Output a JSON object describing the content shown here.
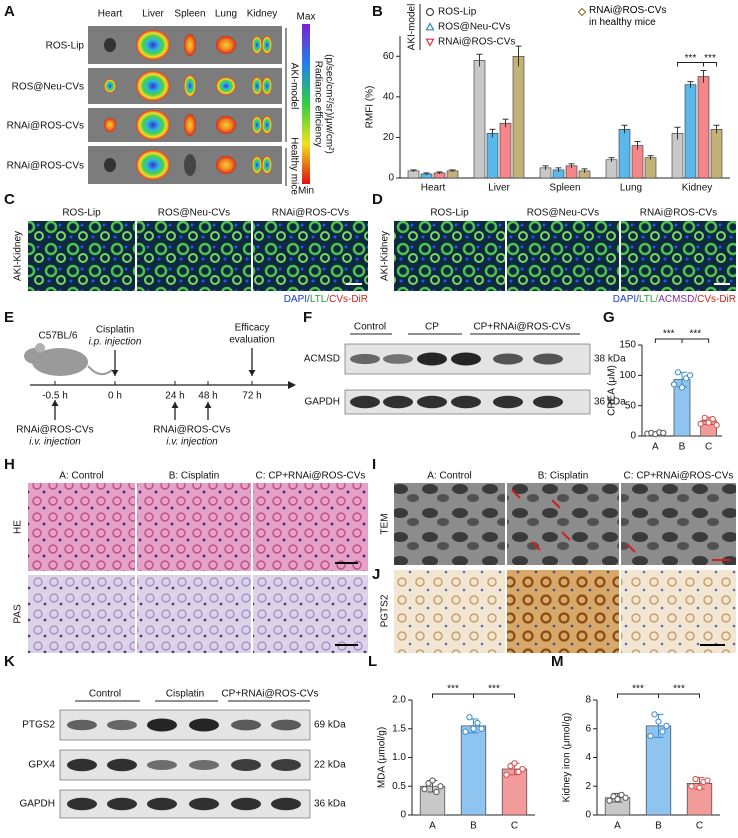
{
  "panel_letters": [
    "A",
    "B",
    "C",
    "D",
    "E",
    "F",
    "G",
    "H",
    "I",
    "J",
    "K",
    "L",
    "M"
  ],
  "panel_a": {
    "organs": [
      "Heart",
      "Liver",
      "Spleen",
      "Lung",
      "Kidney"
    ],
    "rows": [
      "ROS-Lip",
      "ROS@Neu-CVs",
      "RNAi@ROS-CVs",
      "RNAi@ROS-CVs"
    ],
    "groups": [
      "AKI-model",
      "Healthy mice"
    ],
    "colorbar": {
      "max": "Max",
      "min": "Min",
      "label": [
        "Radiance efficiency",
        "(p/sec/cm²/sr)/μw/cm²)"
      ]
    }
  },
  "chart_data": [
    {
      "type": "grouped_bar",
      "ylabel": "RMFI (%)",
      "legend_group": "AKI-model",
      "categories": [
        "Heart",
        "Liver",
        "Spleen",
        "Lung",
        "Kidney"
      ],
      "ylim": [
        0,
        70
      ],
      "yticks": [
        0,
        20,
        40,
        60
      ],
      "series": [
        {
          "name": "ROS-Lip",
          "color": "#c8c8c8",
          "edge": "#444444",
          "marker": "circle",
          "values": [
            3.5,
            58,
            5,
            9,
            22
          ],
          "errors": [
            0.5,
            3,
            1,
            1,
            3
          ]
        },
        {
          "name": "ROS@Neu-CVs",
          "color": "#5bb8ea",
          "edge": "#2a8ac0",
          "marker": "triangle-up",
          "values": [
            2,
            22,
            4,
            24,
            46
          ],
          "errors": [
            0.5,
            2,
            1,
            2,
            1.5
          ]
        },
        {
          "name": "RNAi@ROS-CVs",
          "color": "#f2868a",
          "edge": "#d9363e",
          "marker": "triangle-down",
          "values": [
            2.5,
            27,
            6,
            16,
            50
          ],
          "errors": [
            0.5,
            2,
            1,
            2,
            3
          ]
        },
        {
          "name": "RNAi@ROS-CVs in healthy mice",
          "color": "#c2b27a",
          "edge": "#8c7a3a",
          "marker": "diamond",
          "values": [
            3.5,
            60,
            3.5,
            10,
            24
          ],
          "errors": [
            0.5,
            5,
            1,
            1,
            2
          ]
        }
      ],
      "significance": [
        {
          "label": "***",
          "category": 4,
          "series": [
            0,
            2
          ]
        },
        {
          "label": "***",
          "category": 4,
          "series": [
            2,
            3
          ]
        }
      ]
    },
    {
      "type": "bar",
      "ylabel": "CREA (μM)",
      "categories": [
        "A",
        "B",
        "C"
      ],
      "values": [
        5,
        93,
        25
      ],
      "errors": [
        1,
        12,
        6
      ],
      "points": [
        [
          4,
          5,
          3,
          6,
          5
        ],
        [
          85,
          105,
          80,
          95,
          100
        ],
        [
          20,
          30,
          22,
          28,
          18
        ]
      ],
      "colors": [
        "#c8c8c8",
        "#8ec4f0",
        "#f29b9b"
      ],
      "edges": [
        "#555555",
        "#3a8ad0",
        "#d94a4a"
      ],
      "ylim": [
        0,
        150
      ],
      "yticks": [
        0,
        50,
        100,
        150
      ],
      "significance": [
        {
          "label": "***",
          "pair": [
            0,
            1
          ]
        },
        {
          "label": "***",
          "pair": [
            1,
            2
          ]
        }
      ]
    },
    {
      "type": "bar",
      "ylabel": "MDA (μmol/g)",
      "categories": [
        "A",
        "B",
        "C"
      ],
      "values": [
        0.5,
        1.55,
        0.8
      ],
      "errors": [
        0.1,
        0.12,
        0.1
      ],
      "points": [
        [
          0.45,
          0.55,
          0.6,
          0.4,
          0.5
        ],
        [
          1.45,
          1.7,
          1.5,
          1.6,
          1.5
        ],
        [
          0.7,
          0.85,
          0.9,
          0.75,
          0.8
        ]
      ],
      "colors": [
        "#c8c8c8",
        "#8ec4f0",
        "#f29b9b"
      ],
      "edges": [
        "#555555",
        "#3a8ad0",
        "#d94a4a"
      ],
      "ylim": [
        0,
        2
      ],
      "yticks": [
        0,
        0.5,
        {
          "value": 1,
          "label": "1.0"
        },
        1.5,
        {
          "value": 2,
          "label": "2.0"
        }
      ],
      "significance": [
        {
          "label": "***",
          "pair": [
            0,
            1
          ]
        },
        {
          "label": "***",
          "pair": [
            1,
            2
          ]
        }
      ]
    },
    {
      "type": "bar",
      "ylabel": "Kidney iron (μmol/g)",
      "categories": [
        "A",
        "B",
        "C"
      ],
      "values": [
        1.2,
        6.2,
        2.2
      ],
      "errors": [
        0.3,
        0.8,
        0.4
      ],
      "points": [
        [
          1,
          1.3,
          1.1,
          1.4,
          1.2
        ],
        [
          5.5,
          7,
          6.5,
          5.8,
          6.2
        ],
        [
          2,
          2.5,
          1.9,
          2.3,
          2.4
        ]
      ],
      "colors": [
        "#c8c8c8",
        "#8ec4f0",
        "#f29b9b"
      ],
      "edges": [
        "#555555",
        "#3a8ad0",
        "#d94a4a"
      ],
      "ylim": [
        0,
        8
      ],
      "yticks": [
        0,
        2,
        4,
        6,
        8
      ],
      "significance": [
        {
          "label": "***",
          "pair": [
            0,
            1
          ]
        },
        {
          "label": "***",
          "pair": [
            1,
            2
          ]
        }
      ]
    }
  ],
  "panel_c": {
    "titles": [
      "ROS-Lip",
      "ROS@Neu-CVs",
      "RNAi@ROS-CVs"
    ],
    "side": "AKI-Kidney",
    "stain": [
      "DAPI/",
      "LTL/",
      "CVs-DiR"
    ]
  },
  "panel_d": {
    "titles": [
      "ROS-Lip",
      "ROS@Neu-CVs",
      "RNAi@ROS-CVs"
    ],
    "side": "AKI-Kidney",
    "stain": [
      "DAPI/",
      "LTL/",
      "ACMSD/",
      "CVs-DiR"
    ]
  },
  "panel_e": {
    "strain": "C57BL/6",
    "cisplatin": [
      "Cisplatin",
      "i.p. injection"
    ],
    "efficacy": [
      "Efficacy",
      "evaluation"
    ],
    "times": [
      "-0.5 h",
      "0 h",
      "24 h",
      "48 h",
      "72 h"
    ],
    "injections": [
      [
        "RNAi@ROS-CVs",
        "i.v. injection"
      ],
      [
        "RNAi@ROS-CVs",
        "i.v. injection"
      ]
    ]
  },
  "panel_f": {
    "groups": [
      "Control",
      "CP",
      "CP+RNAi@ROS-CVs"
    ],
    "proteins": [
      "ACMSD",
      "GAPDH"
    ],
    "sizes": [
      "38 kDa",
      "36 kDa"
    ]
  },
  "panel_h": {
    "titles": [
      "A: Control",
      "B: Cisplatin",
      "C: CP+RNAi@ROS-CVs"
    ],
    "rows": [
      "HE",
      "PAS"
    ]
  },
  "panel_i": {
    "titles": [
      "A: Control",
      "B: Cisplatin",
      "C: CP+RNAi@ROS-CVs"
    ],
    "side": "TEM"
  },
  "panel_j": {
    "side": "PGTS2"
  },
  "panel_k": {
    "groups": [
      "Control",
      "Cisplatin",
      "CP+RNAi@ROS-CVs"
    ],
    "proteins": [
      "PTGS2",
      "GPX4",
      "GAPDH"
    ],
    "sizes": [
      "69 kDa",
      "22 kDa",
      "36 kDa"
    ]
  }
}
